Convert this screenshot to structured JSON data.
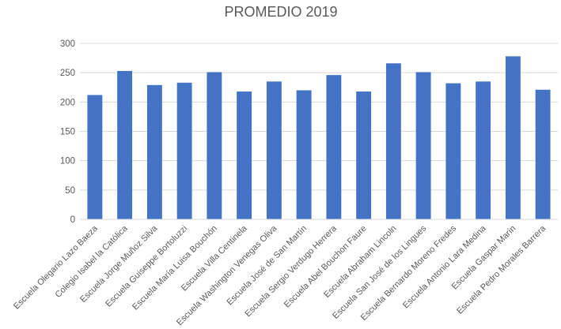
{
  "chart_data": {
    "type": "bar",
    "title": "PROMEDIO 2019",
    "xlabel": "",
    "ylabel": "",
    "ylim": [
      0,
      300
    ],
    "yticks": [
      0,
      50,
      100,
      150,
      200,
      250,
      300
    ],
    "grid": "horizontal",
    "legend": "none",
    "bar_color": "#4472C4",
    "grid_color": "#D9D9D9",
    "text_color": "#595959",
    "categories": [
      "Escuela Olegario Lazo Baeza",
      "Colegio Isabel la Católica",
      "Escuela Jorge Muñoz Silva",
      "Escuela Guiseppe Bortoluzzi",
      "Escuela María Luisa Bouchón",
      "Escuela Villa Centinela",
      "Escuela Washington Venegas Oliva",
      "Escuela José de San Martín",
      "Escuela Sergio Verdugo Herrera",
      "Escuela Abel Bouchon Faure",
      "Escuela Abraham Lincoln",
      "Escuela San José de los Lingues",
      "Escuela Bernardo Moreno Fredes",
      "Escuela Antonio Lara Medina",
      "Escuela Gaspar Marín",
      "Escuela Pedro Morales Barrera"
    ],
    "values": [
      212,
      253,
      229,
      233,
      251,
      218,
      235,
      220,
      246,
      218,
      266,
      251,
      232,
      235,
      278,
      221
    ]
  }
}
